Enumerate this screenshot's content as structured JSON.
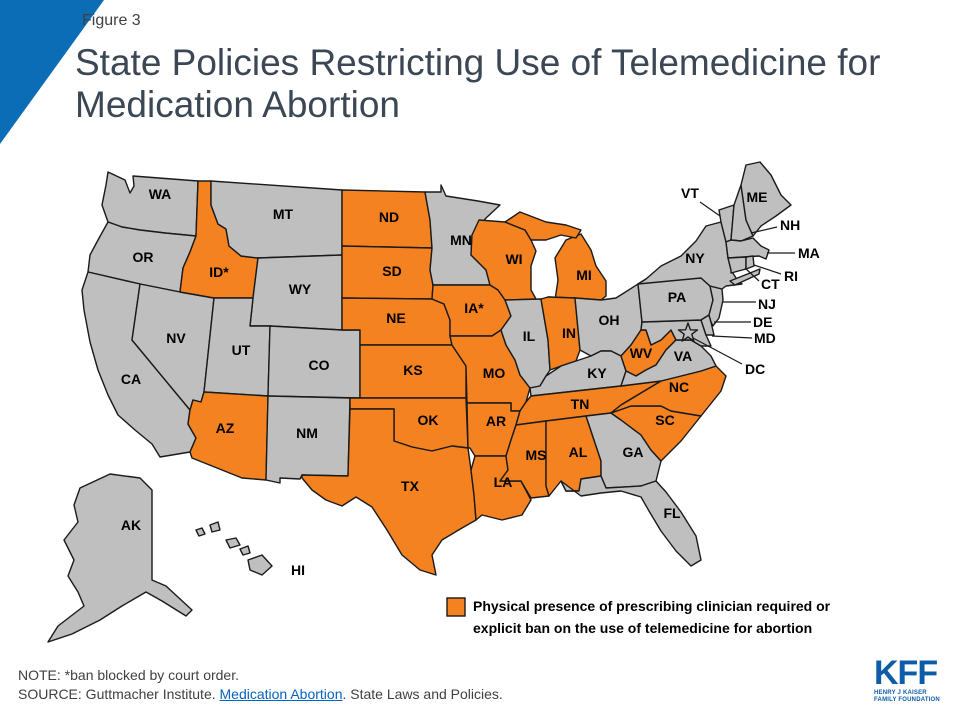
{
  "figure_label": "Figure 3",
  "title": {
    "line1": "State Policies Restricting Use of Telemedicine for",
    "line2": "Medication Abortion"
  },
  "colors": {
    "accent": "#0b6db5",
    "restricted": "#f58220",
    "not_restricted": "#bfbfbf",
    "link": "#0563c1",
    "logo": "#0d5ca8"
  },
  "states": {
    "WA": {
      "label": "WA",
      "restricted": false
    },
    "OR": {
      "label": "OR",
      "restricted": false
    },
    "CA": {
      "label": "CA",
      "restricted": false
    },
    "NV": {
      "label": "NV",
      "restricted": false
    },
    "ID": {
      "label": "ID*",
      "restricted": true
    },
    "MT": {
      "label": "MT",
      "restricted": false
    },
    "WY": {
      "label": "WY",
      "restricted": false
    },
    "UT": {
      "label": "UT",
      "restricted": false
    },
    "CO": {
      "label": "CO",
      "restricted": false
    },
    "AZ": {
      "label": "AZ",
      "restricted": true
    },
    "NM": {
      "label": "NM",
      "restricted": false
    },
    "ND": {
      "label": "ND",
      "restricted": true
    },
    "SD": {
      "label": "SD",
      "restricted": true
    },
    "NE": {
      "label": "NE",
      "restricted": true
    },
    "KS": {
      "label": "KS",
      "restricted": true
    },
    "OK": {
      "label": "OK",
      "restricted": true
    },
    "TX": {
      "label": "TX",
      "restricted": true
    },
    "MN": {
      "label": "MN",
      "restricted": false
    },
    "IA": {
      "label": "IA*",
      "restricted": true
    },
    "MO": {
      "label": "MO",
      "restricted": true
    },
    "AR": {
      "label": "AR",
      "restricted": true
    },
    "LA": {
      "label": "LA",
      "restricted": true
    },
    "WI": {
      "label": "WI",
      "restricted": true
    },
    "IL": {
      "label": "IL",
      "restricted": false
    },
    "MI": {
      "label": "MI",
      "restricted": true
    },
    "IN": {
      "label": "IN",
      "restricted": true
    },
    "OH": {
      "label": "OH",
      "restricted": false
    },
    "KY": {
      "label": "KY",
      "restricted": false
    },
    "TN": {
      "label": "TN",
      "restricted": true
    },
    "MS": {
      "label": "MS",
      "restricted": true
    },
    "AL": {
      "label": "AL",
      "restricted": true
    },
    "GA": {
      "label": "GA",
      "restricted": false
    },
    "FL": {
      "label": "FL",
      "restricted": false
    },
    "SC": {
      "label": "SC",
      "restricted": true
    },
    "NC": {
      "label": "NC",
      "restricted": true
    },
    "WV": {
      "label": "WV",
      "restricted": true
    },
    "VA": {
      "label": "VA",
      "restricted": false
    },
    "PA": {
      "label": "PA",
      "restricted": false
    },
    "NY": {
      "label": "NY",
      "restricted": false
    },
    "VT": {
      "label": "VT",
      "restricted": false
    },
    "NH": {
      "label": "NH",
      "restricted": false
    },
    "ME": {
      "label": "ME",
      "restricted": false
    },
    "MA": {
      "label": "MA",
      "restricted": false
    },
    "RI": {
      "label": "RI",
      "restricted": false
    },
    "CT": {
      "label": "CT",
      "restricted": false
    },
    "NJ": {
      "label": "NJ",
      "restricted": false
    },
    "DE": {
      "label": "DE",
      "restricted": false
    },
    "MD": {
      "label": "MD",
      "restricted": false
    },
    "DC": {
      "label": "DC",
      "restricted": false
    },
    "AK": {
      "label": "AK",
      "restricted": false
    },
    "HI": {
      "label": "HI",
      "restricted": false
    }
  },
  "legend": {
    "line1": "Physical presence of prescribing clinician required or",
    "line2": "explicit ban on the use of telemedicine for abortion"
  },
  "note": "NOTE: *ban blocked by court order.",
  "source": {
    "prefix": "SOURCE: Guttmacher Institute. ",
    "link_text": "Medication Abortion",
    "suffix": ". State Laws and Policies."
  },
  "logo": {
    "mark": "KFF",
    "sub_line1": "HENRY J KAISER",
    "sub_line2": "FAMILY FOUNDATION"
  }
}
